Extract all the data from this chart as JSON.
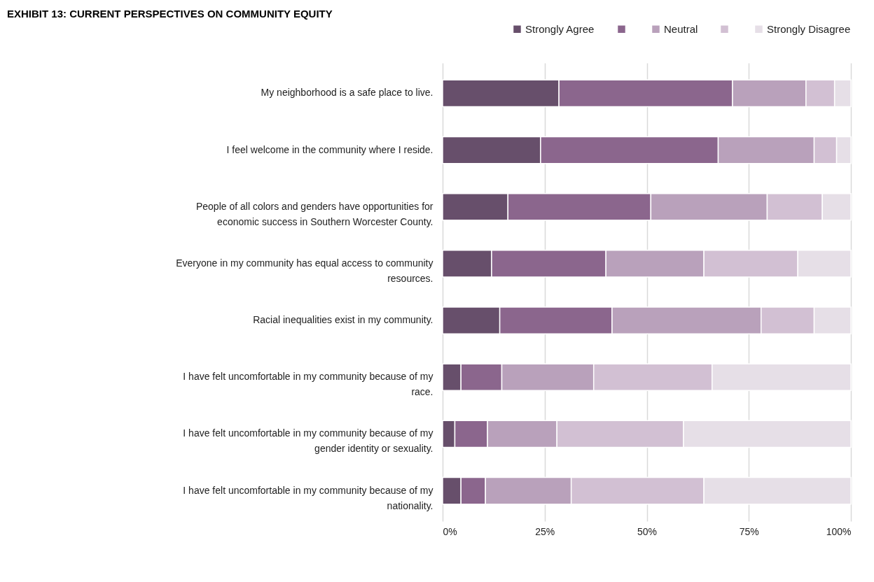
{
  "chart_data": {
    "type": "bar",
    "orientation": "horizontal",
    "stacked": true,
    "title": "EXHIBIT 13: CURRENT PERSPECTIVES ON COMMUNITY EQUITY",
    "categories": [
      "My neighborhood is a safe place to live.",
      "I feel welcome in the community where I reside.",
      "People of all colors and genders have opportunities for economic success in Southern Worcester County.",
      "Everyone in my community has equal access to community resources.",
      "Racial inequalities exist in my community.",
      "I have felt uncomfortable in my community because of my race.",
      "I have felt uncomfortable in my community because of my gender identity or sexuality.",
      "I have felt uncomfortable in my community because of my nationality."
    ],
    "series": [
      {
        "name": "Strongly Agree",
        "color": "#674f6b",
        "values": [
          28.5,
          24,
          16,
          12,
          14,
          4.5,
          3,
          4.5
        ]
      },
      {
        "color": "#8b668d",
        "values": [
          42.5,
          43.5,
          35,
          28,
          27.5,
          10,
          8,
          6
        ]
      },
      {
        "name": "Neutral",
        "color": "#b9a1bb",
        "values": [
          18,
          23.5,
          28.5,
          24,
          36.5,
          22.5,
          17,
          21
        ]
      },
      {
        "color": "#d2c0d3",
        "values": [
          7,
          5.5,
          13.5,
          23,
          13,
          29,
          31,
          32.5
        ]
      },
      {
        "name": "Strongly Disagree",
        "color": "#e6dfe7",
        "values": [
          4,
          3.5,
          7,
          13,
          9,
          34,
          41,
          36
        ]
      }
    ],
    "xlim": [
      0,
      100
    ],
    "xticks": [
      {
        "value": 0,
        "label": "0%"
      },
      {
        "value": 25,
        "label": "25%"
      },
      {
        "value": 50,
        "label": "50%"
      },
      {
        "value": 75,
        "label": "75%"
      },
      {
        "value": 100,
        "label": "100%"
      }
    ],
    "grid": "x",
    "legend": "top right"
  }
}
